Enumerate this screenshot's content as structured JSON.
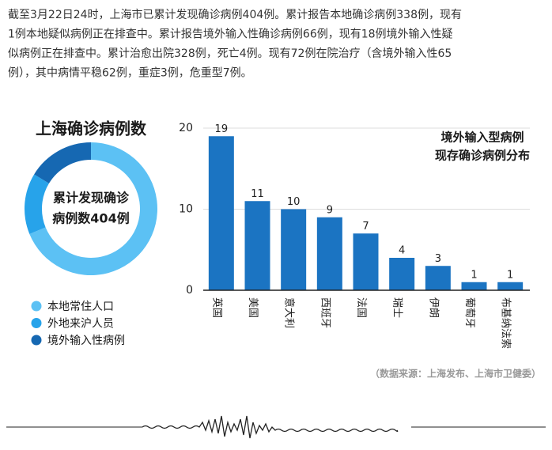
{
  "paragraph": [
    "截至3月22日24时，上海市已累计发现确诊病例404例。累计报告本地确诊病例338例，现有",
    "1例本地疑似病例正在排查中。累计报告境外输入性确诊病例66例，现有18例境外输入性疑",
    "似病例正在排查中。累计治愈出院328例，死亡4例。现有72例在院治疗（含境外输入性65",
    "例），其中病情平稳62例，重症3例，危重型7例。"
  ],
  "chart_data": [
    {
      "type": "donut",
      "title": "上海确诊病例数",
      "center_label": [
        "累计发现确诊",
        "病例数404例"
      ],
      "categories": [
        "本地常住人口",
        "外地来沪人员",
        "境外输入性病例"
      ],
      "values": [
        278,
        60,
        66
      ],
      "colors": [
        "#5cc1f4",
        "#27a3ea",
        "#1668b2"
      ]
    },
    {
      "type": "bar",
      "title": [
        "境外输入型病例",
        "现存确诊病例分布"
      ],
      "categories": [
        "英国",
        "美国",
        "意大利",
        "西班牙",
        "法国",
        "瑞士",
        "伊朗",
        "葡萄牙",
        "布基纳法索"
      ],
      "values": [
        19,
        11,
        10,
        9,
        7,
        4,
        3,
        1,
        1
      ],
      "color": "#1b74c2",
      "ylim": [
        0,
        20
      ],
      "yticks": [
        0,
        10,
        20
      ],
      "grid": true
    }
  ],
  "source": "（数据来源：上海发布、上海市卫健委）"
}
